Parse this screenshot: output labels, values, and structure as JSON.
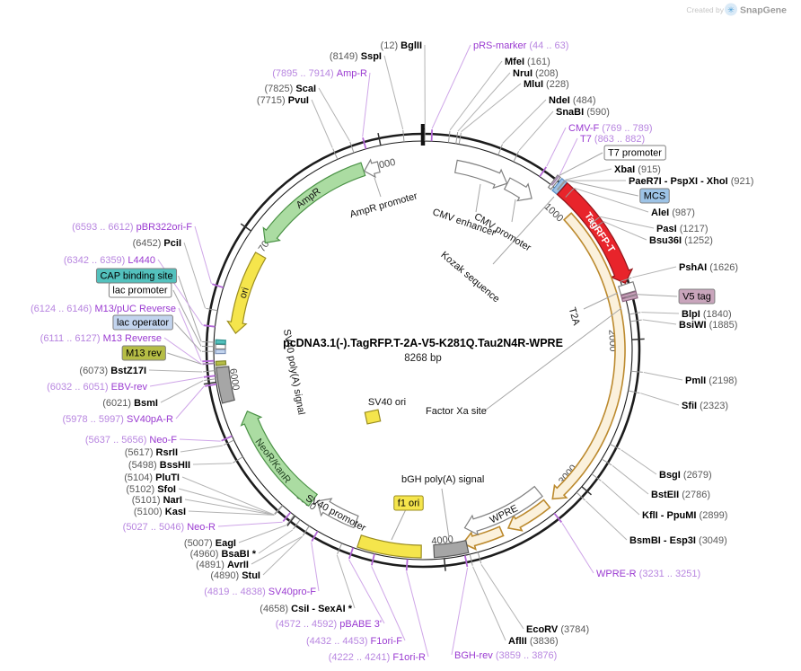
{
  "watermark": {
    "created_by": "Created by",
    "brand": "SnapGene"
  },
  "plasmid": {
    "title": "pcDNA3.1(-).TagRFP.T-2A-V5-K281Q.Tau2N4R-WPRE",
    "length_bp": 8268,
    "length_label": "8268 bp"
  },
  "ticks": [
    {
      "bp": 1000,
      "label": "1000"
    },
    {
      "bp": 2000,
      "label": "2000"
    },
    {
      "bp": 3000,
      "label": "3000"
    },
    {
      "bp": 4000,
      "label": "4000"
    },
    {
      "bp": 5000,
      "label": "5000"
    },
    {
      "bp": 6000,
      "label": "6000"
    },
    {
      "bp": 7000,
      "label": "7000"
    },
    {
      "bp": 8000,
      "label": "8000"
    }
  ],
  "features": [
    {
      "id": "cmv-enhancer",
      "label": "CMV enhancer",
      "start": 235,
      "end": 614,
      "dir": 1,
      "shape": "arrow",
      "fill": "#ffffff",
      "stroke": "#808080"
    },
    {
      "id": "cmv-promoter",
      "label": "CMV promoter",
      "start": 616,
      "end": 818,
      "dir": 1,
      "shape": "arrow",
      "fill": "#ffffff",
      "stroke": "#808080"
    },
    {
      "id": "t7-promoter-site",
      "label": "",
      "start": 863,
      "end": 884,
      "shape": "box",
      "fill": "#ffffff",
      "stroke": "#808080"
    },
    {
      "id": "mcs-site",
      "label": "",
      "start": 895,
      "end": 934,
      "shape": "box",
      "fill": "#9dc3e6",
      "stroke": "#5b8ec4"
    },
    {
      "id": "tagrfp-t",
      "label": "TagRFP-T",
      "start": 936,
      "end": 1646,
      "dir": 1,
      "shape": "arrow",
      "fill": "#e8242b",
      "stroke": "#93151a"
    },
    {
      "id": "t2a",
      "label": "T2A",
      "start": 1652,
      "end": 1708,
      "shape": "box",
      "fill": "#ffffff",
      "stroke": "#808080"
    },
    {
      "id": "v5-site-a",
      "label": "",
      "start": 1712,
      "end": 1729,
      "shape": "box",
      "fill": "#c9a5bc",
      "stroke": "#8d6480"
    },
    {
      "id": "v5-site-b",
      "label": "",
      "start": 1734,
      "end": 1752,
      "shape": "box",
      "fill": "#c9a5bc",
      "stroke": "#8d6480"
    },
    {
      "id": "insert-orf",
      "label": "",
      "start": 1085,
      "end": 3190,
      "dir": 1,
      "shape": "arrow",
      "fill": "#fbf1dc",
      "stroke": "#bc8a2e"
    },
    {
      "id": "insert-orf-2",
      "label": "",
      "start": 3240,
      "end": 3545,
      "dir": 1,
      "shape": "arrow",
      "fill": "#fbf1dc",
      "stroke": "#bc8a2e"
    },
    {
      "id": "insert-orf-3",
      "label": "",
      "start": 3595,
      "end": 3865,
      "dir": 1,
      "shape": "arrow",
      "fill": "#fbf1dc",
      "stroke": "#bc8a2e"
    },
    {
      "id": "wpre",
      "label": "WPRE",
      "start": 3231,
      "end": 3830,
      "dir": 1,
      "shape": "arrow",
      "fill": "#ffffff",
      "stroke": "#808080"
    },
    {
      "id": "bgh-poly-a",
      "label": "bGH poly(A) signal",
      "start": 3842,
      "end": 4062,
      "shape": "box",
      "fill": "#a6a6a6",
      "stroke": "#595959"
    },
    {
      "id": "f1-ori",
      "label": "f1 ori",
      "start": 4145,
      "end": 4558,
      "shape": "box",
      "fill": "#f5e54c",
      "stroke": "#9b8d20"
    },
    {
      "id": "sv40-promoter",
      "label": "SV40 promoter",
      "start": 4624,
      "end": 4938,
      "dir": 1,
      "shape": "arrow",
      "fill": "#ffffff",
      "stroke": "#808080"
    },
    {
      "id": "sv40-ori",
      "label": "SV40 ori",
      "shape": "float",
      "fill": "#f5e54c"
    },
    {
      "id": "neor-kanr",
      "label": "NeoR/KanR",
      "start": 4968,
      "end": 5762,
      "dir": 1,
      "shape": "arrow",
      "fill": "#abdca2",
      "stroke": "#4c9347"
    },
    {
      "id": "sv40-poly-a",
      "label": "SV40 poly(A) signal",
      "start": 5862,
      "end": 6092,
      "shape": "box",
      "fill": "#a6a6a6",
      "stroke": "#595959"
    },
    {
      "id": "m13-rev-site",
      "label": "",
      "start": 6105,
      "end": 6131,
      "shape": "box",
      "fill": "#b5bd45",
      "stroke": "#7e8426"
    },
    {
      "id": "lac-operator-site",
      "label": "",
      "start": 6180,
      "end": 6207,
      "shape": "box",
      "fill": "#c2d4ee",
      "stroke": "#7d92b8"
    },
    {
      "id": "lac-promoter-site",
      "label": "",
      "start": 6210,
      "end": 6239,
      "shape": "box",
      "fill": "#ffffff",
      "stroke": "#808080"
    },
    {
      "id": "cap-site",
      "label": "",
      "start": 6242,
      "end": 6268,
      "shape": "box",
      "fill": "#53c1bd",
      "stroke": "#2e8f8b"
    },
    {
      "id": "ori",
      "label": "ori",
      "start": 6320,
      "end": 6898,
      "dir": -1,
      "shape": "arrow",
      "fill": "#f5e54c",
      "stroke": "#9b8d20"
    },
    {
      "id": "ampr",
      "label": "AmpR",
      "start": 6988,
      "end": 7848,
      "dir": -1,
      "shape": "arrow",
      "fill": "#abdca2",
      "stroke": "#4c9347"
    },
    {
      "id": "ampr-promoter",
      "label": "AmpR promoter",
      "start": 7852,
      "end": 7956,
      "dir": -1,
      "shape": "arrow",
      "fill": "#ffffff",
      "stroke": "#808080"
    },
    {
      "id": "kozak",
      "label": "Kozak sequence",
      "shape": "label",
      "bp": 928
    },
    {
      "id": "factor-xa",
      "label": "Factor Xa site",
      "shape": "label",
      "bp": 1780
    }
  ],
  "sites": [
    {
      "id": "bglii",
      "name": "BglII",
      "pos": "(12)",
      "bp": 12,
      "type": "enzyme"
    },
    {
      "id": "sspi",
      "name": "SspI",
      "pos": "(8149)",
      "bp": 8149,
      "type": "enzyme"
    },
    {
      "id": "prs",
      "name": "pRS-marker",
      "pos": "(44 .. 63)",
      "bp": 54,
      "type": "primer"
    },
    {
      "id": "mfei",
      "name": "MfeI",
      "pos": "(161)",
      "bp": 161,
      "type": "enzyme"
    },
    {
      "id": "nrui",
      "name": "NruI",
      "pos": "(208)",
      "bp": 208,
      "type": "enzyme"
    },
    {
      "id": "mlui",
      "name": "MluI",
      "pos": "(228)",
      "bp": 228,
      "type": "enzyme"
    },
    {
      "id": "ampr_r",
      "name": "Amp-R",
      "pos": "(7895 .. 7914)",
      "bp": 7905,
      "type": "primer"
    },
    {
      "id": "scai",
      "name": "ScaI",
      "pos": "(7825)",
      "bp": 7825,
      "type": "enzyme"
    },
    {
      "id": "pvui",
      "name": "PvuI",
      "pos": "(7715)",
      "bp": 7715,
      "type": "enzyme"
    },
    {
      "id": "ndei",
      "name": "NdeI",
      "pos": "(484)",
      "bp": 484,
      "type": "enzyme"
    },
    {
      "id": "snabi",
      "name": "SnaBI",
      "pos": "(590)",
      "bp": 590,
      "type": "enzyme"
    },
    {
      "id": "cmvf",
      "name": "CMV-F",
      "pos": "(769 .. 789)",
      "bp": 779,
      "type": "primer"
    },
    {
      "id": "t7",
      "name": "T7",
      "pos": "(863 .. 882)",
      "bp": 872,
      "type": "primer"
    },
    {
      "id": "t7prom",
      "name": "T7 promoter",
      "pos": "",
      "bp": 872,
      "type": "boxed",
      "fill": "#ffffff"
    },
    {
      "id": "xbai",
      "name": "XbaI",
      "pos": "(915)",
      "bp": 915,
      "type": "enzyme"
    },
    {
      "id": "paer",
      "name": "PaeR7I - PspXI - XhoI",
      "pos": "(921)",
      "bp": 921,
      "type": "enzyme"
    },
    {
      "id": "mcs",
      "name": "MCS",
      "pos": "",
      "bp": 918,
      "type": "boxed",
      "fill": "#9dc3e6"
    },
    {
      "id": "alei",
      "name": "AleI",
      "pos": "(987)",
      "bp": 987,
      "type": "enzyme"
    },
    {
      "id": "pasi",
      "name": "PasI",
      "pos": "(1217)",
      "bp": 1217,
      "type": "enzyme"
    },
    {
      "id": "bsu36i",
      "name": "Bsu36I",
      "pos": "(1252)",
      "bp": 1252,
      "type": "enzyme"
    },
    {
      "id": "pshai",
      "name": "PshAI",
      "pos": "(1626)",
      "bp": 1626,
      "type": "enzyme"
    },
    {
      "id": "v5",
      "name": "V5 tag",
      "pos": "",
      "bp": 1732,
      "type": "boxed",
      "fill": "#c9a5bc"
    },
    {
      "id": "blpi",
      "name": "BlpI",
      "pos": "(1840)",
      "bp": 1840,
      "type": "enzyme"
    },
    {
      "id": "bsiwi",
      "name": "BsiWI",
      "pos": "(1885)",
      "bp": 1885,
      "type": "enzyme"
    },
    {
      "id": "pmli",
      "name": "PmlI",
      "pos": "(2198)",
      "bp": 2198,
      "type": "enzyme"
    },
    {
      "id": "sfii",
      "name": "SfiI",
      "pos": "(2323)",
      "bp": 2323,
      "type": "enzyme"
    },
    {
      "id": "bsgi",
      "name": "BsgI",
      "pos": "(2679)",
      "bp": 2679,
      "type": "enzyme"
    },
    {
      "id": "bsteii",
      "name": "BstEII",
      "pos": "(2786)",
      "bp": 2786,
      "type": "enzyme"
    },
    {
      "id": "kfli",
      "name": "KflI - PpuMI",
      "pos": "(2899)",
      "bp": 2899,
      "type": "enzyme"
    },
    {
      "id": "bsmbi",
      "name": "BsmBI - Esp3I",
      "pos": "(3049)",
      "bp": 3049,
      "type": "enzyme"
    },
    {
      "id": "wprer",
      "name": "WPRE-R",
      "pos": "(3231 .. 3251)",
      "bp": 3241,
      "type": "primer"
    },
    {
      "id": "ecorv",
      "name": "EcoRV",
      "pos": "(3784)",
      "bp": 3784,
      "type": "enzyme"
    },
    {
      "id": "aflii",
      "name": "AflII",
      "pos": "(3836)",
      "bp": 3836,
      "type": "enzyme"
    },
    {
      "id": "bghrev",
      "name": "BGH-rev",
      "pos": "(3859 .. 3876)",
      "bp": 3868,
      "type": "primer"
    },
    {
      "id": "f1orir",
      "name": "F1ori-R",
      "pos": "(4222 .. 4241)",
      "bp": 4232,
      "type": "primer"
    },
    {
      "id": "f1orif",
      "name": "F1ori-F",
      "pos": "(4432 .. 4453)",
      "bp": 4442,
      "type": "primer"
    },
    {
      "id": "pbabe",
      "name": "pBABE 3'",
      "pos": "(4572 .. 4592)",
      "bp": 4582,
      "type": "primer"
    },
    {
      "id": "csii",
      "name": "CsiI - SexAI *",
      "pos": "(4658)",
      "bp": 4658,
      "type": "enzyme"
    },
    {
      "id": "sv40prof",
      "name": "SV40pro-F",
      "pos": "(4819 .. 4838)",
      "bp": 4828,
      "type": "primer"
    },
    {
      "id": "stui",
      "name": "StuI",
      "pos": "(4890)",
      "bp": 4890,
      "type": "enzyme"
    },
    {
      "id": "avrii",
      "name": "AvrII",
      "pos": "(4891)",
      "bp": 4891,
      "type": "enzyme"
    },
    {
      "id": "bsabi",
      "name": "BsaBI *",
      "pos": "(4960)",
      "bp": 4960,
      "type": "enzyme"
    },
    {
      "id": "eagi",
      "name": "EagI",
      "pos": "(5007)",
      "bp": 5007,
      "type": "enzyme"
    },
    {
      "id": "neor_r",
      "name": "Neo-R",
      "pos": "(5027 .. 5046)",
      "bp": 5036,
      "type": "primer"
    },
    {
      "id": "kasi",
      "name": "KasI",
      "pos": "(5100)",
      "bp": 5100,
      "type": "enzyme"
    },
    {
      "id": "nari",
      "name": "NarI",
      "pos": "(5101)",
      "bp": 5101,
      "type": "enzyme"
    },
    {
      "id": "sfoi",
      "name": "SfoI",
      "pos": "(5102)",
      "bp": 5102,
      "type": "enzyme"
    },
    {
      "id": "pluti",
      "name": "PluTI",
      "pos": "(5104)",
      "bp": 5104,
      "type": "enzyme"
    },
    {
      "id": "bsshii",
      "name": "BssHII",
      "pos": "(5498)",
      "bp": 5498,
      "type": "enzyme"
    },
    {
      "id": "rsrii",
      "name": "RsrII",
      "pos": "(5617)",
      "bp": 5617,
      "type": "enzyme"
    },
    {
      "id": "neof",
      "name": "Neo-F",
      "pos": "(5637 .. 5656)",
      "bp": 5646,
      "type": "primer"
    },
    {
      "id": "sv40par",
      "name": "SV40pA-R",
      "pos": "(5978 .. 5997)",
      "bp": 5987,
      "type": "primer"
    },
    {
      "id": "bsmi",
      "name": "BsmI",
      "pos": "(6021)",
      "bp": 6021,
      "type": "enzyme"
    },
    {
      "id": "ebvrev",
      "name": "EBV-rev",
      "pos": "(6032 .. 6051)",
      "bp": 6041,
      "type": "primer"
    },
    {
      "id": "bstz17i",
      "name": "BstZ17I",
      "pos": "(6073)",
      "bp": 6073,
      "type": "enzyme"
    },
    {
      "id": "m13reverse",
      "name": "M13 Reverse",
      "pos": "(6111 .. 6127)",
      "bp": 6119,
      "type": "primer"
    },
    {
      "id": "m13rev",
      "name": "M13 rev",
      "pos": "",
      "bp": 6119,
      "type": "boxed",
      "fill": "#b5bd45"
    },
    {
      "id": "m13puc",
      "name": "M13/pUC Reverse",
      "pos": "(6124 .. 6146)",
      "bp": 6135,
      "type": "primer"
    },
    {
      "id": "lacop",
      "name": "lac operator",
      "pos": "",
      "bp": 6194,
      "type": "boxed",
      "fill": "#c2d4ee"
    },
    {
      "id": "lacprom",
      "name": "lac promoter",
      "pos": "",
      "bp": 6225,
      "type": "boxed",
      "fill": "#ffffff"
    },
    {
      "id": "cap",
      "name": "CAP binding site",
      "pos": "",
      "bp": 6252,
      "type": "boxed",
      "fill": "#53c1bd"
    },
    {
      "id": "l4440",
      "name": "L4440",
      "pos": "(6342 .. 6359)",
      "bp": 6350,
      "type": "primer"
    },
    {
      "id": "pcii",
      "name": "PciI",
      "pos": "(6452)",
      "bp": 6452,
      "type": "enzyme"
    },
    {
      "id": "pbr322",
      "name": "pBR322ori-F",
      "pos": "(6593 .. 6612)",
      "bp": 6602,
      "type": "primer"
    }
  ],
  "colors": {
    "primer_text": "#9a3ad1",
    "primer_pos": "#b886e0",
    "enzyme_pos": "#595959",
    "cds_green": "#abdca2",
    "reporter_red": "#e8242b",
    "ori_yellow": "#f5e54c",
    "signal_gray": "#a6a6a6",
    "insert_orange": "#bc8a2e"
  }
}
